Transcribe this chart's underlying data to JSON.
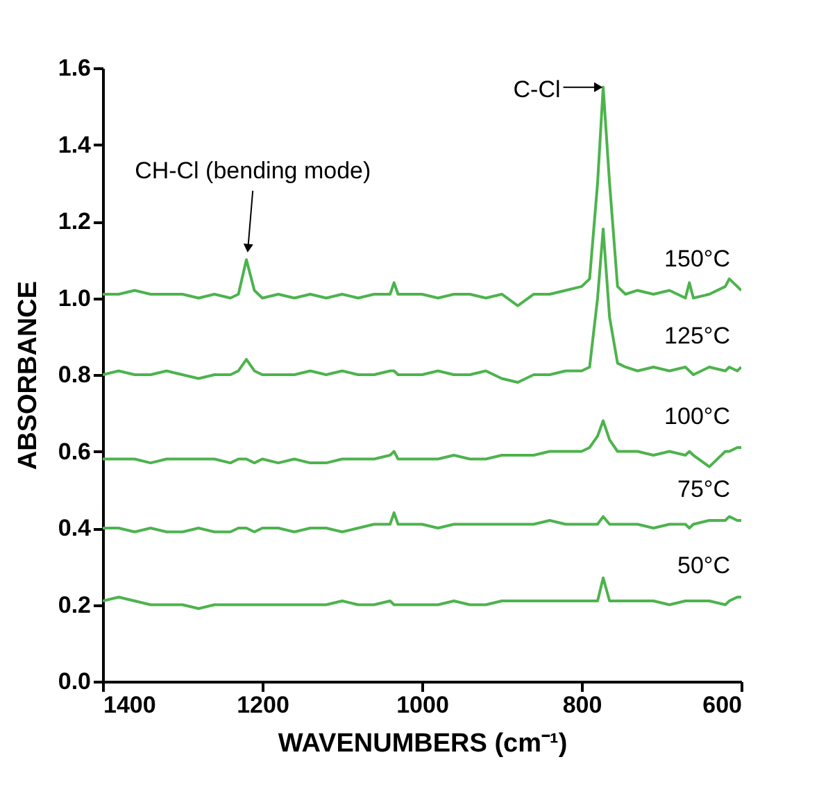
{
  "chart_data": {
    "type": "line",
    "xlabel": "WAVENUMBERS (cm⁻¹)",
    "ylabel": "ABSORBANCE",
    "x": [
      1400,
      1380,
      1360,
      1340,
      1320,
      1300,
      1280,
      1260,
      1240,
      1230,
      1220,
      1210,
      1200,
      1180,
      1160,
      1140,
      1120,
      1100,
      1080,
      1060,
      1040,
      1035,
      1030,
      1000,
      980,
      960,
      940,
      920,
      900,
      880,
      860,
      840,
      820,
      800,
      790,
      780,
      773,
      765,
      755,
      745,
      730,
      710,
      690,
      670,
      665,
      660,
      640,
      620,
      615,
      605,
      600
    ],
    "series": [
      {
        "name": "150°C",
        "color": "#4db34d",
        "values": [
          1.01,
          1.01,
          1.02,
          1.01,
          1.01,
          1.01,
          1.0,
          1.01,
          1.0,
          1.01,
          1.1,
          1.02,
          1.0,
          1.01,
          1.0,
          1.01,
          1.0,
          1.01,
          1.0,
          1.01,
          1.01,
          1.04,
          1.01,
          1.01,
          1.0,
          1.01,
          1.01,
          1.0,
          1.01,
          0.98,
          1.01,
          1.01,
          1.02,
          1.03,
          1.05,
          1.3,
          1.55,
          1.3,
          1.03,
          1.01,
          1.02,
          1.01,
          1.02,
          1.0,
          1.04,
          1.0,
          1.01,
          1.03,
          1.05,
          1.03,
          1.02
        ]
      },
      {
        "name": "125°C",
        "color": "#4db34d",
        "values": [
          0.8,
          0.81,
          0.8,
          0.8,
          0.81,
          0.8,
          0.79,
          0.8,
          0.8,
          0.81,
          0.84,
          0.81,
          0.8,
          0.8,
          0.8,
          0.81,
          0.8,
          0.81,
          0.8,
          0.8,
          0.81,
          0.81,
          0.8,
          0.8,
          0.81,
          0.8,
          0.8,
          0.81,
          0.79,
          0.78,
          0.8,
          0.8,
          0.81,
          0.81,
          0.82,
          1.0,
          1.18,
          0.95,
          0.83,
          0.82,
          0.81,
          0.82,
          0.81,
          0.82,
          0.81,
          0.8,
          0.82,
          0.81,
          0.82,
          0.81,
          0.82
        ]
      },
      {
        "name": "100°C",
        "color": "#4db34d",
        "values": [
          0.58,
          0.58,
          0.58,
          0.57,
          0.58,
          0.58,
          0.58,
          0.58,
          0.57,
          0.58,
          0.58,
          0.57,
          0.58,
          0.57,
          0.58,
          0.57,
          0.57,
          0.58,
          0.58,
          0.58,
          0.59,
          0.6,
          0.58,
          0.58,
          0.58,
          0.59,
          0.58,
          0.58,
          0.59,
          0.59,
          0.59,
          0.6,
          0.6,
          0.6,
          0.61,
          0.64,
          0.68,
          0.63,
          0.6,
          0.6,
          0.6,
          0.59,
          0.6,
          0.59,
          0.6,
          0.59,
          0.56,
          0.6,
          0.6,
          0.61,
          0.61
        ]
      },
      {
        "name": "75°C",
        "color": "#4db34d",
        "values": [
          0.4,
          0.4,
          0.39,
          0.4,
          0.39,
          0.39,
          0.4,
          0.39,
          0.39,
          0.4,
          0.4,
          0.39,
          0.4,
          0.4,
          0.39,
          0.4,
          0.4,
          0.39,
          0.4,
          0.41,
          0.41,
          0.44,
          0.41,
          0.41,
          0.4,
          0.41,
          0.41,
          0.41,
          0.41,
          0.41,
          0.41,
          0.42,
          0.41,
          0.41,
          0.41,
          0.41,
          0.43,
          0.41,
          0.41,
          0.41,
          0.41,
          0.4,
          0.41,
          0.41,
          0.4,
          0.41,
          0.42,
          0.42,
          0.43,
          0.42,
          0.42
        ]
      },
      {
        "name": "50°C",
        "color": "#4db34d",
        "values": [
          0.21,
          0.22,
          0.21,
          0.2,
          0.2,
          0.2,
          0.19,
          0.2,
          0.2,
          0.2,
          0.2,
          0.2,
          0.2,
          0.2,
          0.2,
          0.2,
          0.2,
          0.21,
          0.2,
          0.2,
          0.21,
          0.2,
          0.2,
          0.2,
          0.2,
          0.21,
          0.2,
          0.2,
          0.21,
          0.21,
          0.21,
          0.21,
          0.21,
          0.21,
          0.21,
          0.21,
          0.27,
          0.21,
          0.21,
          0.21,
          0.21,
          0.21,
          0.2,
          0.21,
          0.21,
          0.21,
          0.21,
          0.2,
          0.21,
          0.22,
          0.22
        ]
      }
    ],
    "xlim": [
      1400,
      600
    ],
    "xticks": [
      1400,
      1200,
      1000,
      800,
      600
    ],
    "ylim": [
      0,
      1.6
    ],
    "yticks": [
      {
        "value": 0,
        "label": "0.0"
      },
      0.2,
      0.4,
      0.6,
      0.8,
      {
        "value": 1,
        "label": "1.0"
      },
      1.2,
      1.4,
      1.6
    ],
    "grid": false,
    "marker": "none",
    "line_style": "solid",
    "annotations": [
      {
        "text": "C-Cl",
        "x": 773,
        "y": 1.55
      },
      {
        "text": "CH-Cl (bending mode)",
        "x": 1220,
        "y": 1.1
      }
    ]
  }
}
